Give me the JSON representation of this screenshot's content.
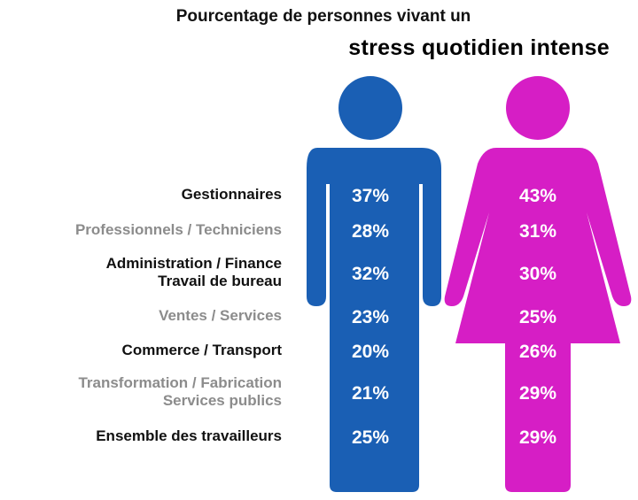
{
  "chart_data": {
    "type": "table",
    "title_line1": "Pourcentage de personnes vivant un",
    "title_line2": "stress quotidien intense",
    "categories": [
      {
        "label_lines": [
          "Gestionnaires"
        ],
        "shade": "dark"
      },
      {
        "label_lines": [
          "Professionnels / Techniciens"
        ],
        "shade": "gray"
      },
      {
        "label_lines": [
          "Administration / Finance",
          "Travail de bureau"
        ],
        "shade": "dark"
      },
      {
        "label_lines": [
          "Ventes / Services"
        ],
        "shade": "gray"
      },
      {
        "label_lines": [
          "Commerce / Transport"
        ],
        "shade": "dark"
      },
      {
        "label_lines": [
          "Transformation / Fabrication",
          "Services publics"
        ],
        "shade": "gray"
      },
      {
        "label_lines": [
          "Ensemble des travailleurs"
        ],
        "shade": "dark"
      }
    ],
    "series": [
      {
        "color": "#1a5fb4",
        "icon": "man-icon",
        "values": [
          37,
          28,
          32,
          23,
          20,
          21,
          25
        ],
        "labels": [
          "37%",
          "28%",
          "32%",
          "23%",
          "20%",
          "21%",
          "25%"
        ]
      },
      {
        "color": "#d61ec5",
        "icon": "woman-icon",
        "values": [
          43,
          31,
          30,
          25,
          26,
          29,
          29
        ],
        "labels": [
          "43%",
          "31%",
          "30%",
          "25%",
          "26%",
          "29%",
          "29%"
        ]
      }
    ]
  },
  "colors": {
    "man": "#1a5fb4",
    "woman": "#d61ec5",
    "label_dark": "#111111",
    "label_gray": "#8c8c8c"
  }
}
